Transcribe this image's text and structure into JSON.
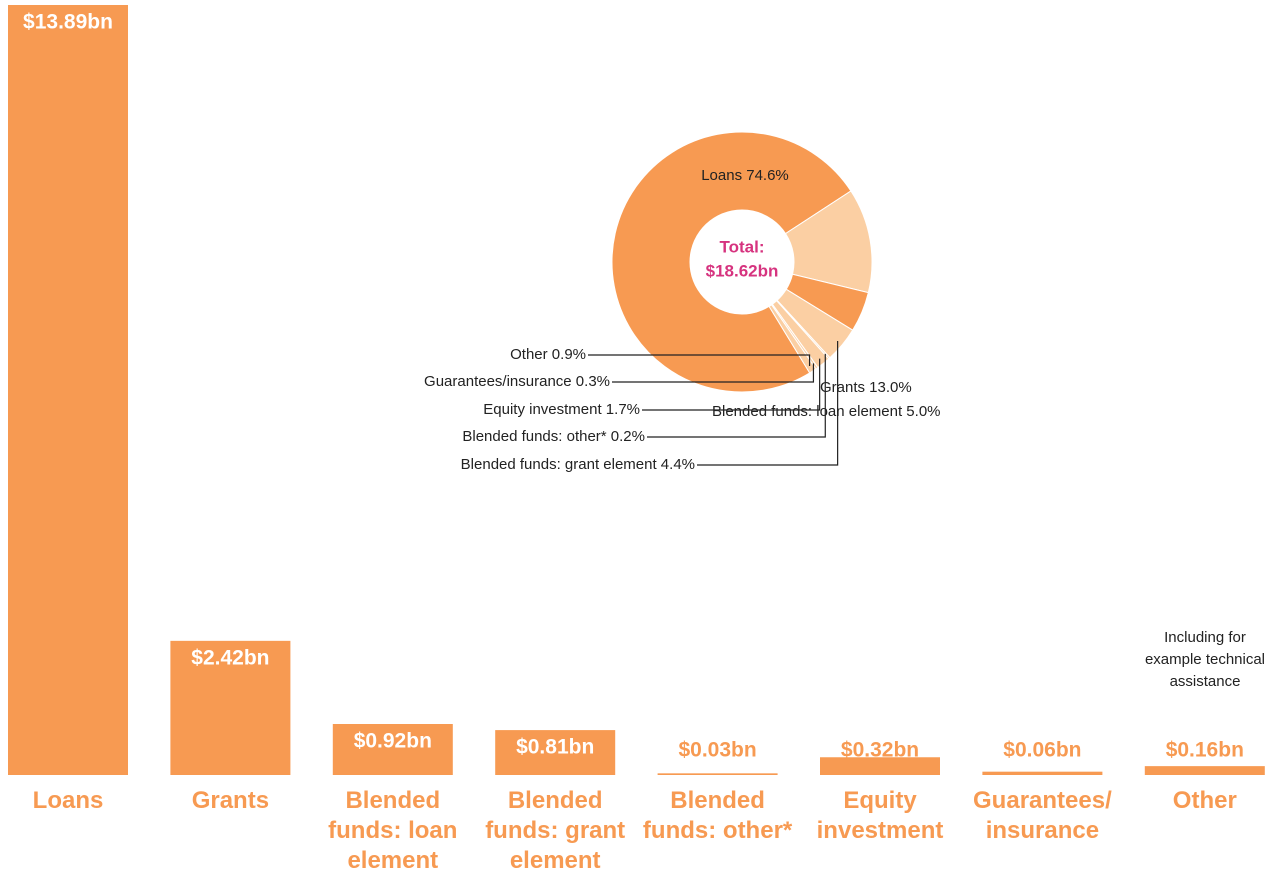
{
  "chart_data": [
    {
      "type": "bar",
      "categories": [
        "Loans",
        "Grants",
        "Blended funds: loan element",
        "Blended funds: grant element",
        "Blended funds: other*",
        "Equity investment",
        "Guarantees/ insurance",
        "Other"
      ],
      "values": [
        13.89,
        2.42,
        0.92,
        0.81,
        0.03,
        0.32,
        0.06,
        0.16
      ],
      "value_labels": [
        "$13.89bn",
        "$2.42bn",
        "$0.92bn",
        "$0.81bn",
        "$0.03bn",
        "$0.32bn",
        "$0.06bn",
        "$0.16bn"
      ],
      "color": "#f79a52",
      "annotation": "Including for example technical assistance"
    },
    {
      "type": "donut",
      "values": [
        74.6,
        13.0,
        5.0,
        4.4,
        0.2,
        1.7,
        0.3,
        0.9
      ],
      "value_labels": [
        "Loans 74.6%",
        "Grants 13.0%",
        "Blended funds: loan element 5.0%",
        "Blended funds: grant element 4.4%",
        "Blended funds: other* 0.2%",
        "Equity investment 1.7%",
        "Guarantees/insurance 0.3%",
        "Other 0.9%"
      ],
      "colors": [
        "#f79a52",
        "#fbcfa3",
        "#f79a52",
        "#fbcfa3",
        "#fbcfa3",
        "#fbcfa3",
        "#fbcfa3",
        "#fbcfa3"
      ],
      "center_label": [
        "Total:",
        "$18.62bn"
      ]
    }
  ]
}
